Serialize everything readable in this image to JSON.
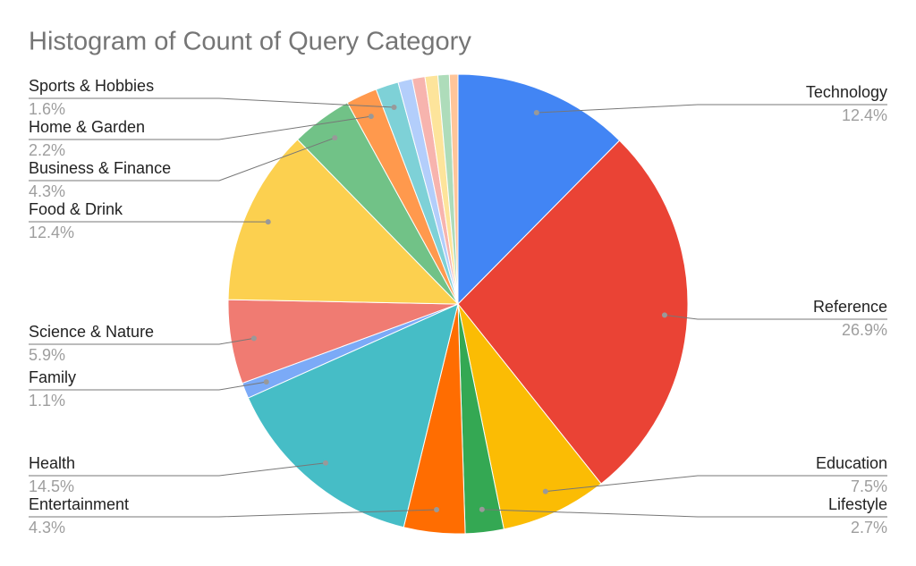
{
  "chart_data": {
    "type": "pie",
    "title": "Histogram of Count of Query Category",
    "categories": [
      "Technology",
      "Reference",
      "Education",
      "Lifestyle",
      "Entertainment",
      "Health",
      "Family",
      "Science & Nature",
      "Food & Drink",
      "Business & Finance",
      "Home & Garden",
      "Sports & Hobbies",
      null,
      null,
      null,
      null,
      null
    ],
    "values": [
      12.4,
      26.9,
      7.5,
      2.7,
      4.3,
      14.5,
      1.1,
      5.9,
      12.4,
      4.3,
      2.2,
      1.6,
      1.0,
      0.9,
      0.9,
      0.8,
      0.6
    ],
    "value_labels": [
      "12.4%",
      "26.9%",
      "7.5%",
      "2.7%",
      "4.3%",
      "14.5%",
      "1.1%",
      "5.9%",
      "12.4%",
      "4.3%",
      "2.2%",
      "1.6%",
      null,
      null,
      null,
      null,
      null
    ],
    "colors": [
      "#4285f4",
      "#ea4335",
      "#fbbc04",
      "#34a853",
      "#ff6d01",
      "#46bdc6",
      "#7baaf7",
      "#f07b72",
      "#fcd04f",
      "#71c287",
      "#ff994d",
      "#7ed1d7",
      "#b3cefb",
      "#f7b4ae",
      "#fde49b",
      "#aedcba",
      "#ffc599"
    ]
  }
}
